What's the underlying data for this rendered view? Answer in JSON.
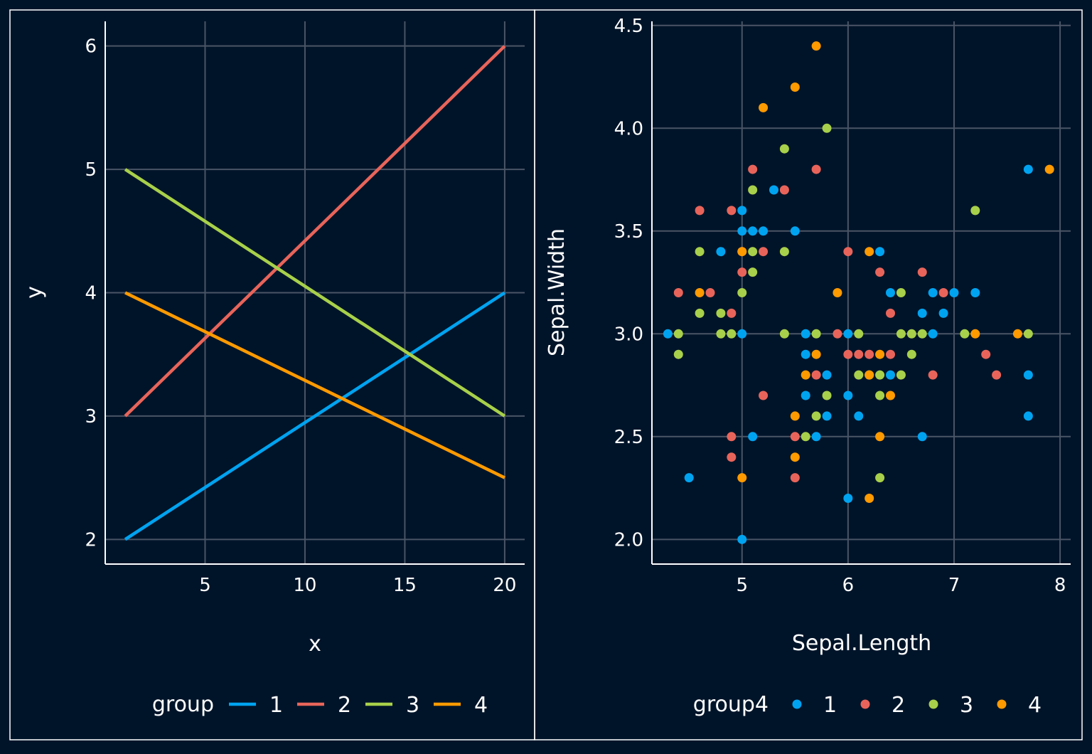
{
  "colors": {
    "background": "#001429",
    "panel_border": "#ffffff",
    "grid": "#4a5566",
    "text": "#ffffff",
    "group1": "#00a3f0",
    "group2": "#e8645a",
    "group3": "#a8d04a",
    "group4": "#ff9a00"
  },
  "chart_data": [
    {
      "type": "line",
      "xlabel": "x",
      "ylabel": "y",
      "xlim": [
        0,
        21
      ],
      "ylim": [
        1.8,
        6.2
      ],
      "x_ticks": [
        "5",
        "10",
        "15",
        "20"
      ],
      "y_ticks": [
        "2",
        "3",
        "4",
        "5",
        "6"
      ],
      "grid": true,
      "legend": {
        "title": "group",
        "position": "bottom",
        "entries": [
          "1",
          "2",
          "3",
          "4"
        ]
      },
      "series": [
        {
          "name": "1",
          "color": "#00a3f0",
          "points": [
            [
              1,
              2
            ],
            [
              20,
              4
            ]
          ]
        },
        {
          "name": "2",
          "color": "#e8645a",
          "points": [
            [
              1,
              3
            ],
            [
              20,
              6
            ]
          ]
        },
        {
          "name": "3",
          "color": "#a8d04a",
          "points": [
            [
              1,
              5
            ],
            [
              20,
              3
            ]
          ]
        },
        {
          "name": "4",
          "color": "#ff9a00",
          "points": [
            [
              1,
              4
            ],
            [
              20,
              2.5
            ]
          ]
        }
      ]
    },
    {
      "type": "scatter",
      "xlabel": "Sepal.Length",
      "ylabel": "Sepal.Width",
      "xlim": [
        4.15,
        8.1
      ],
      "ylim": [
        1.88,
        4.52
      ],
      "x_ticks": [
        "5",
        "6",
        "7",
        "8"
      ],
      "y_ticks": [
        "2.0",
        "2.5",
        "3.0",
        "3.5",
        "4.0",
        "4.5"
      ],
      "grid": true,
      "legend": {
        "title": "group4",
        "position": "bottom",
        "entries": [
          "1",
          "2",
          "3",
          "4"
        ]
      },
      "series": [
        {
          "name": "1",
          "color": "#00a3f0",
          "points": [
            [
              4.3,
              3.0
            ],
            [
              4.5,
              2.3
            ],
            [
              4.8,
              3.4
            ],
            [
              5.0,
              3.6
            ],
            [
              5.0,
              3.5
            ],
            [
              5.1,
              3.5
            ],
            [
              5.2,
              3.5
            ],
            [
              5.5,
              3.5
            ],
            [
              5.3,
              3.7
            ],
            [
              5.0,
              3.0
            ],
            [
              5.1,
              2.5
            ],
            [
              5.0,
              2.0
            ],
            [
              5.6,
              3.0
            ],
            [
              5.6,
              2.9
            ],
            [
              5.6,
              2.7
            ],
            [
              5.7,
              2.5
            ],
            [
              5.8,
              2.8
            ],
            [
              5.8,
              2.6
            ],
            [
              6.0,
              3.0
            ],
            [
              6.0,
              2.7
            ],
            [
              6.1,
              2.6
            ],
            [
              6.0,
              2.2
            ],
            [
              6.3,
              3.4
            ],
            [
              6.4,
              3.2
            ],
            [
              6.4,
              2.8
            ],
            [
              6.7,
              3.1
            ],
            [
              6.7,
              2.5
            ],
            [
              6.8,
              3.2
            ],
            [
              6.8,
              3.0
            ],
            [
              6.9,
              3.1
            ],
            [
              7.0,
              3.2
            ],
            [
              7.2,
              3.2
            ],
            [
              7.7,
              3.8
            ],
            [
              7.7,
              2.8
            ],
            [
              7.7,
              2.6
            ]
          ]
        },
        {
          "name": "2",
          "color": "#e8645a",
          "points": [
            [
              4.4,
              3.2
            ],
            [
              4.6,
              3.6
            ],
            [
              4.7,
              3.2
            ],
            [
              4.9,
              3.6
            ],
            [
              4.9,
              3.1
            ],
            [
              4.9,
              2.5
            ],
            [
              4.9,
              2.4
            ],
            [
              5.0,
              3.4
            ],
            [
              5.0,
              3.3
            ],
            [
              5.1,
              3.8
            ],
            [
              5.2,
              3.4
            ],
            [
              5.2,
              2.7
            ],
            [
              5.4,
              3.7
            ],
            [
              5.5,
              2.5
            ],
            [
              5.5,
              2.3
            ],
            [
              5.7,
              3.8
            ],
            [
              5.7,
              2.8
            ],
            [
              5.9,
              3.0
            ],
            [
              6.0,
              3.4
            ],
            [
              6.0,
              2.9
            ],
            [
              6.1,
              2.9
            ],
            [
              6.2,
              2.9
            ],
            [
              6.3,
              3.3
            ],
            [
              6.4,
              3.1
            ],
            [
              6.4,
              2.9
            ],
            [
              6.7,
              3.3
            ],
            [
              6.8,
              2.8
            ],
            [
              6.9,
              3.2
            ],
            [
              7.3,
              2.9
            ],
            [
              7.4,
              2.8
            ]
          ]
        },
        {
          "name": "3",
          "color": "#a8d04a",
          "points": [
            [
              4.4,
              3.0
            ],
            [
              4.4,
              2.9
            ],
            [
              4.6,
              3.4
            ],
            [
              4.6,
              3.1
            ],
            [
              4.8,
              3.1
            ],
            [
              4.8,
              3.0
            ],
            [
              4.9,
              3.0
            ],
            [
              5.0,
              3.2
            ],
            [
              5.1,
              3.7
            ],
            [
              5.1,
              3.4
            ],
            [
              5.1,
              3.3
            ],
            [
              5.4,
              3.9
            ],
            [
              5.4,
              3.4
            ],
            [
              5.4,
              3.0
            ],
            [
              5.6,
              2.5
            ],
            [
              5.7,
              3.0
            ],
            [
              5.7,
              2.6
            ],
            [
              5.8,
              4.0
            ],
            [
              5.8,
              2.7
            ],
            [
              6.1,
              3.0
            ],
            [
              6.1,
              2.8
            ],
            [
              6.2,
              2.8
            ],
            [
              6.3,
              2.8
            ],
            [
              6.3,
              2.7
            ],
            [
              6.3,
              2.3
            ],
            [
              6.5,
              3.2
            ],
            [
              6.5,
              3.0
            ],
            [
              6.5,
              2.8
            ],
            [
              6.6,
              3.0
            ],
            [
              6.6,
              2.9
            ],
            [
              6.7,
              3.0
            ],
            [
              7.1,
              3.0
            ],
            [
              7.2,
              3.6
            ],
            [
              7.7,
              3.0
            ]
          ]
        },
        {
          "name": "4",
          "color": "#ff9a00",
          "points": [
            [
              4.6,
              3.2
            ],
            [
              5.0,
              3.4
            ],
            [
              5.0,
              2.3
            ],
            [
              5.2,
              4.1
            ],
            [
              5.5,
              4.2
            ],
            [
              5.5,
              2.6
            ],
            [
              5.5,
              2.4
            ],
            [
              5.6,
              2.8
            ],
            [
              5.7,
              4.4
            ],
            [
              5.7,
              2.9
            ],
            [
              5.9,
              3.2
            ],
            [
              6.2,
              3.4
            ],
            [
              6.2,
              2.8
            ],
            [
              6.2,
              2.2
            ],
            [
              6.3,
              2.9
            ],
            [
              6.3,
              2.5
            ],
            [
              6.4,
              2.7
            ],
            [
              7.2,
              3.0
            ],
            [
              7.6,
              3.0
            ],
            [
              7.9,
              3.8
            ]
          ]
        }
      ]
    }
  ]
}
